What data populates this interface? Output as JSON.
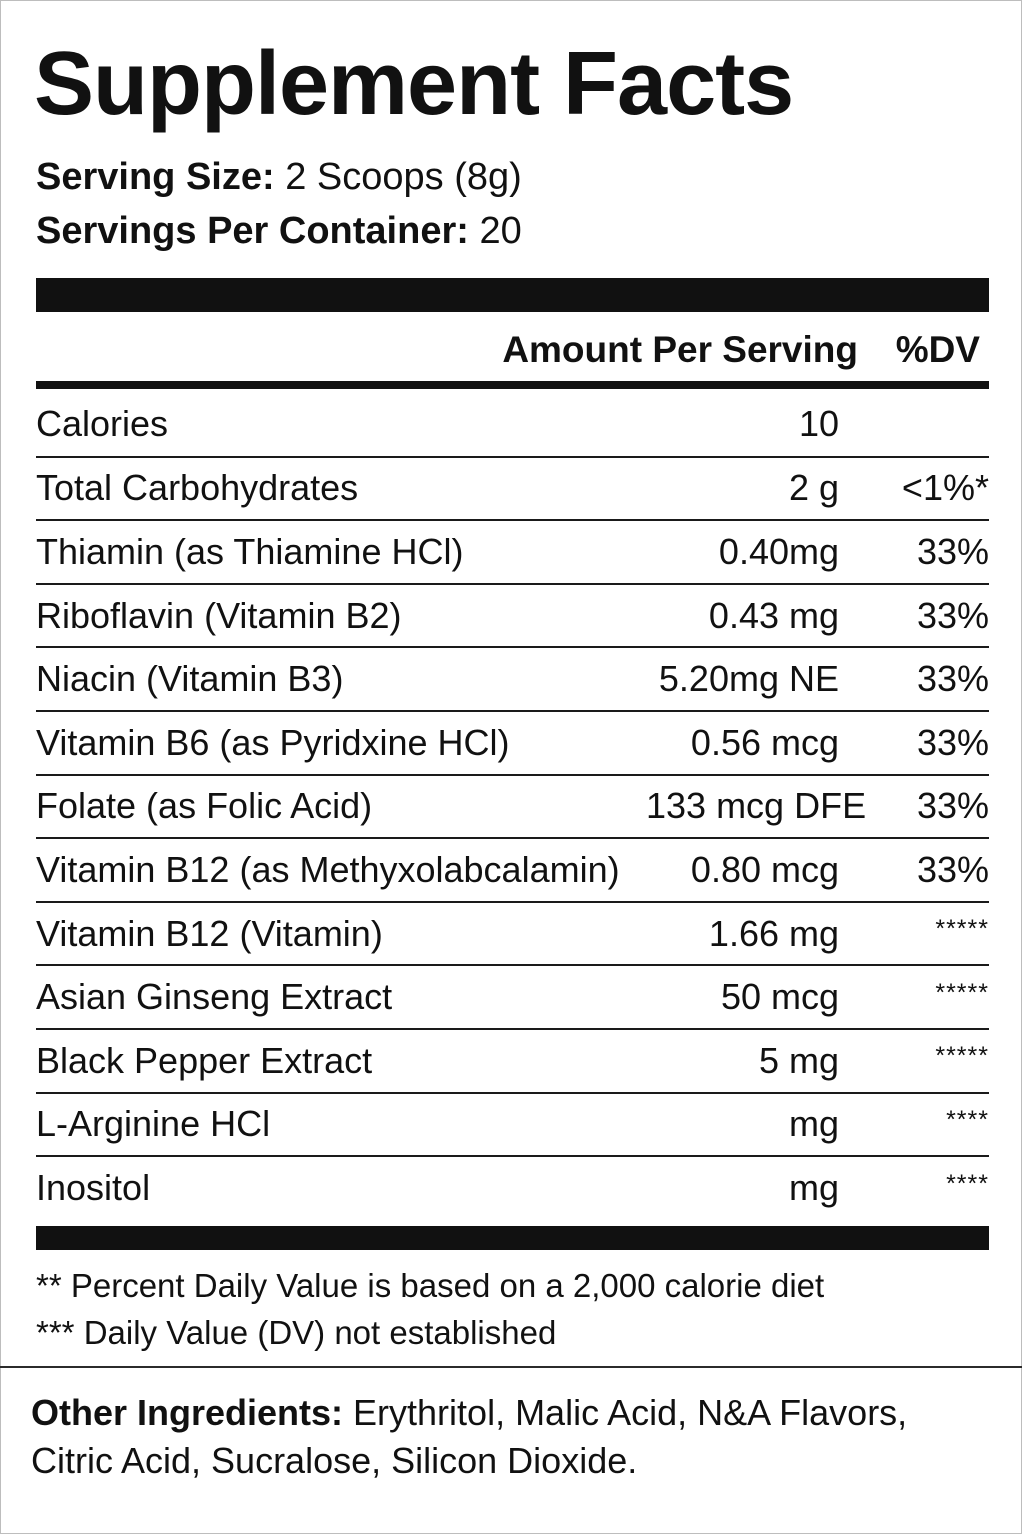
{
  "label": {
    "title": "Supplement Facts",
    "serving_size_label": "Serving Size:",
    "serving_size_value": " 2 Scoops (8g)",
    "servings_per_container_label": "Servings Per Container:",
    "servings_per_container_value": " 20",
    "amount_header": "Amount Per Serving",
    "dv_header": "%DV",
    "rows": [
      {
        "name": "Calories",
        "amount": "10",
        "dv": ""
      },
      {
        "name": "Total Carbohydrates",
        "amount": "2 g",
        "dv": "<1%*"
      },
      {
        "name": "Thiamin (as Thiamine HCl)",
        "amount": "0.40mg",
        "dv": "33%"
      },
      {
        "name": "Riboflavin (Vitamin B2)",
        "amount": "0.43 mg",
        "dv": "33%"
      },
      {
        "name": "Niacin (Vitamin B3)",
        "amount": "5.20mg NE",
        "dv": "33%"
      },
      {
        "name": "Vitamin B6 (as Pyridxine HCl)",
        "amount": "0.56 mcg",
        "dv": "33%"
      },
      {
        "name": "Folate (as Folic Acid)",
        "amount": "133 mcg DFE",
        "dv": "33%"
      },
      {
        "name": "Vitamin B12 (as Methyxolabcalamin)",
        "amount": "0.80 mcg",
        "dv": "33%"
      },
      {
        "name": "Vitamin B12 (Vitamin)",
        "amount": "1.66 mg",
        "dv": "*****"
      },
      {
        "name": "Asian Ginseng Extract",
        "amount": "50 mcg",
        "dv": "*****"
      },
      {
        "name": "Black Pepper Extract",
        "amount": "5 mg",
        "dv": "*****"
      },
      {
        "name": "L-Arginine HCl",
        "amount": "mg",
        "dv": "****"
      },
      {
        "name": "Inositol",
        "amount": "mg",
        "dv": "****"
      }
    ],
    "footnotes": [
      "** Percent Daily Value is based on a 2,000 calorie diet",
      "*** Daily Value (DV) not established"
    ],
    "other_ingredients_label": "Other Ingredients:",
    "other_ingredients_value": " Erythritol, Malic Acid, N&A Flavors, Citric Acid, Sucralose, Silicon Dioxide."
  }
}
